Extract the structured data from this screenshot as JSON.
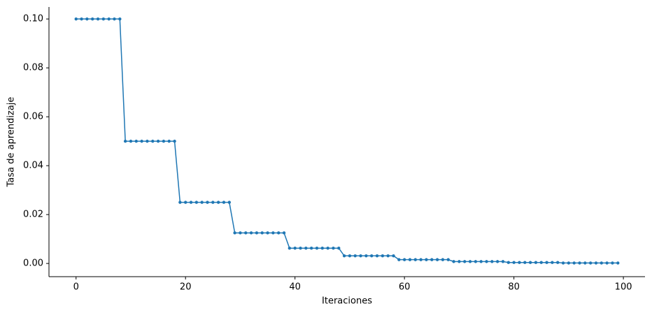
{
  "chart_data": {
    "type": "line",
    "xlabel": "Iteraciones",
    "ylabel": "Tasa de aprendizaje",
    "x": [
      0,
      1,
      2,
      3,
      4,
      5,
      6,
      7,
      8,
      9,
      10,
      11,
      12,
      13,
      14,
      15,
      16,
      17,
      18,
      19,
      20,
      21,
      22,
      23,
      24,
      25,
      26,
      27,
      28,
      29,
      30,
      31,
      32,
      33,
      34,
      35,
      36,
      37,
      38,
      39,
      40,
      41,
      42,
      43,
      44,
      45,
      46,
      47,
      48,
      49,
      50,
      51,
      52,
      53,
      54,
      55,
      56,
      57,
      58,
      59,
      60,
      61,
      62,
      63,
      64,
      65,
      66,
      67,
      68,
      69,
      70,
      71,
      72,
      73,
      74,
      75,
      76,
      77,
      78,
      79,
      80,
      81,
      82,
      83,
      84,
      85,
      86,
      87,
      88,
      89,
      90,
      91,
      92,
      93,
      94,
      95,
      96,
      97,
      98,
      99
    ],
    "series": [
      {
        "color": "#1f77b4",
        "markers": true,
        "values": [
          0.1,
          0.1,
          0.1,
          0.1,
          0.1,
          0.1,
          0.1,
          0.1,
          0.1,
          0.05,
          0.05,
          0.05,
          0.05,
          0.05,
          0.05,
          0.05,
          0.05,
          0.05,
          0.05,
          0.025,
          0.025,
          0.025,
          0.025,
          0.025,
          0.025,
          0.025,
          0.025,
          0.025,
          0.025,
          0.0125,
          0.0125,
          0.0125,
          0.0125,
          0.0125,
          0.0125,
          0.0125,
          0.0125,
          0.0125,
          0.0125,
          0.00625,
          0.00625,
          0.00625,
          0.00625,
          0.00625,
          0.00625,
          0.00625,
          0.00625,
          0.00625,
          0.00625,
          0.003125,
          0.003125,
          0.003125,
          0.003125,
          0.003125,
          0.003125,
          0.003125,
          0.003125,
          0.003125,
          0.003125,
          0.0015625,
          0.0015625,
          0.0015625,
          0.0015625,
          0.0015625,
          0.0015625,
          0.0015625,
          0.0015625,
          0.0015625,
          0.0015625,
          0.00078125,
          0.00078125,
          0.00078125,
          0.00078125,
          0.00078125,
          0.00078125,
          0.00078125,
          0.00078125,
          0.00078125,
          0.00078125,
          0.000390625,
          0.000390625,
          0.000390625,
          0.000390625,
          0.000390625,
          0.000390625,
          0.000390625,
          0.000390625,
          0.000390625,
          0.000390625,
          0.0001953125,
          0.0001953125,
          0.0001953125,
          0.0001953125,
          0.0001953125,
          0.0001953125,
          0.0001953125,
          0.0001953125,
          0.0001953125,
          0.0001953125,
          0.0001953125
        ]
      }
    ],
    "xlim": [
      -4.95,
      103.95
    ],
    "xticks": [
      0,
      20,
      40,
      60,
      80,
      100
    ],
    "ylim": [
      -0.0054,
      0.1049
    ],
    "yticks": [
      {
        "value": 0,
        "label": "0.00"
      },
      {
        "value": 0.02,
        "label": "0.02"
      },
      {
        "value": 0.04,
        "label": "0.04"
      },
      {
        "value": 0.06,
        "label": "0.06"
      },
      {
        "value": 0.08,
        "label": "0.08"
      },
      {
        "value": 0.1,
        "label": "0.10"
      }
    ],
    "grid": false
  }
}
